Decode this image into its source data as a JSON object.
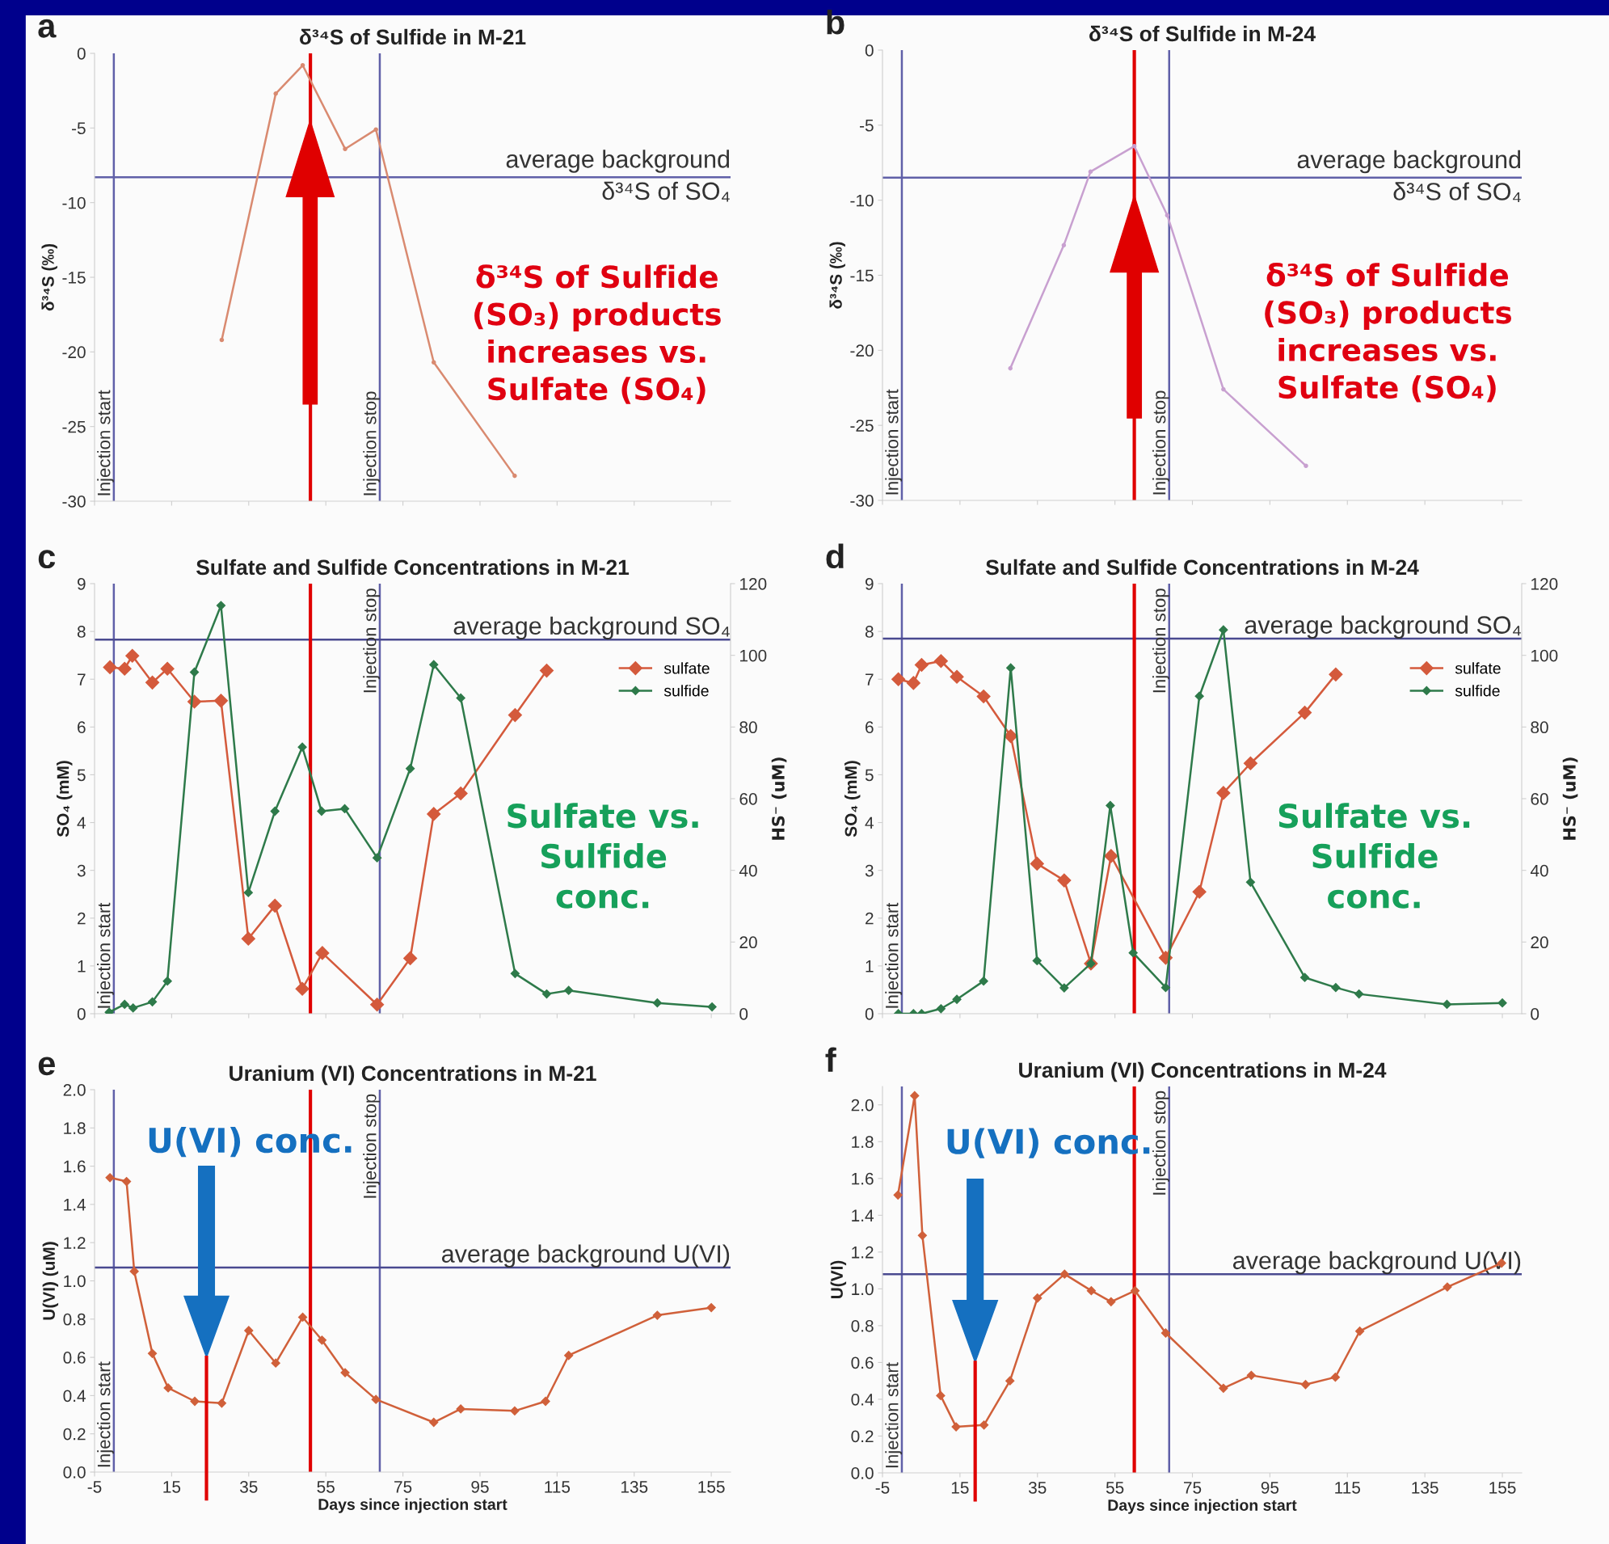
{
  "chart_data": [
    {
      "type": "line",
      "title": "δ³⁴S of Sulfide in M-21",
      "ylabel": "δ³⁴S (‰)",
      "marker": "circle",
      "tick_labels": "y",
      "xlim": [
        -5,
        160
      ],
      "xticks": [
        -5,
        15,
        35,
        55,
        75,
        95,
        115,
        135,
        155
      ],
      "ylim": [
        -30,
        0
      ],
      "yticks": [
        -30,
        -25,
        -20,
        -15,
        -10,
        -5,
        0
      ],
      "series": [
        {
          "color": "#d98a70",
          "x": [
            28,
            42,
            49,
            60,
            68,
            83,
            104
          ],
          "values": [
            -19.2,
            -2.7,
            -0.8,
            -6.4,
            -5.1,
            -20.7,
            -28.3
          ]
        }
      ],
      "ref_lines": [
        {
          "axis": "x",
          "value": 0,
          "label": "Injection start",
          "color": "#6060a8"
        },
        {
          "axis": "x",
          "value": 69,
          "label": "Injection stop",
          "color": "#6060a8"
        },
        {
          "axis": "y",
          "value": -8.3,
          "label": "average background\nδ³⁴S of SO₄",
          "color": "#6060a8"
        },
        {
          "axis": "x",
          "value": 51,
          "color": "#e00000"
        }
      ],
      "annotations": [
        "a",
        "δ³⁴S of Sulfide\n(SO₃) products\nincreases vs.\nSulfate (SO₄)"
      ]
    },
    {
      "type": "line",
      "title": "δ³⁴S of Sulfide in M-24",
      "ylabel": "δ³⁴S (‰)",
      "marker": "circle",
      "tick_labels": "y",
      "xlim": [
        -5,
        160
      ],
      "xticks": [
        -5,
        15,
        35,
        55,
        75,
        95,
        115,
        135,
        155
      ],
      "ylim": [
        -30,
        0
      ],
      "yticks": [
        -30,
        -25,
        -20,
        -15,
        -10,
        -5,
        0
      ],
      "series": [
        {
          "color": "#c8a0d0",
          "x": [
            28,
            41.8,
            48.7,
            60,
            68.5,
            83,
            104.3
          ],
          "values": [
            -21.2,
            -13.0,
            -8.1,
            -6.4,
            -11.0,
            -22.6,
            -27.7
          ]
        }
      ],
      "ref_lines": [
        {
          "axis": "x",
          "value": 0,
          "label": "Injection start",
          "color": "#6060a8"
        },
        {
          "axis": "x",
          "value": 69,
          "label": "Injection stop",
          "color": "#6060a8"
        },
        {
          "axis": "y",
          "value": -8.5,
          "label": "average background\nδ³⁴S of SO₄",
          "color": "#6060a8"
        },
        {
          "axis": "x",
          "value": 60,
          "color": "#e00000"
        }
      ],
      "annotations": [
        "b",
        "δ³⁴S of Sulfide\n(SO₃) products\nincreases vs.\nSulfate (SO₄)"
      ]
    },
    {
      "type": "line",
      "title": "Sulfate and Sulfide Concentrations in M-21",
      "ylabel": "SO₄ (mM)",
      "y2label": "HS⁻ (uM)",
      "marker": "diamond",
      "tick_labels": "y",
      "legend": "top right",
      "xlim": [
        -5,
        160
      ],
      "xticks": [
        -5,
        15,
        35,
        55,
        75,
        95,
        115,
        135,
        155
      ],
      "ylim": [
        0,
        9
      ],
      "yticks": [
        0,
        1,
        2,
        3,
        4,
        5,
        6,
        7,
        8,
        9
      ],
      "y2lim": [
        0,
        120
      ],
      "y2ticks": [
        0,
        20,
        40,
        60,
        80,
        100,
        120
      ],
      "series": [
        {
          "name": "sulfate",
          "color": "#d45a3c",
          "x": [
            -1,
            2.8,
            4.8,
            10,
            13.9,
            20.9,
            27.8,
            34.9,
            41.8,
            48.9,
            54.1,
            68.3,
            76.9,
            83,
            90,
            104.1,
            112.3
          ],
          "values": [
            7.25,
            7.22,
            7.49,
            6.93,
            7.22,
            6.53,
            6.55,
            1.57,
            2.26,
            0.52,
            1.27,
            0.19,
            1.16,
            4.18,
            4.61,
            6.25,
            7.18
          ]
        },
        {
          "name": "sulfide",
          "color": "#2e7a4a",
          "axis": "y2",
          "x": [
            -1.2,
            2.8,
            5,
            10,
            13.9,
            20.9,
            27.8,
            34.9,
            41.8,
            48.9,
            53.9,
            59.9,
            68.3,
            76.9,
            83,
            90,
            104.1,
            112.3,
            118,
            141,
            155.2
          ],
          "values": [
            0.4,
            2.6,
            1.6,
            3.3,
            9.1,
            95.3,
            113.9,
            33.8,
            56.5,
            74.4,
            56.5,
            57.2,
            43.5,
            68.4,
            97.4,
            88.1,
            11.2,
            5.5,
            6.5,
            3.0,
            1.9
          ]
        }
      ],
      "ref_lines": [
        {
          "axis": "x",
          "value": 0,
          "label": "Injection start",
          "color": "#6060a8"
        },
        {
          "axis": "x",
          "value": 69,
          "label": "Injection stop",
          "color": "#6060a8"
        },
        {
          "axis": "y",
          "value": 7.83,
          "label": "average background SO₄",
          "color": "#4a4a90"
        },
        {
          "axis": "x",
          "value": 51,
          "color": "#e00000"
        }
      ],
      "annotations": [
        "c",
        "Sulfate vs.\nSulfide\nconc."
      ]
    },
    {
      "type": "line",
      "title": "Sulfate and Sulfide Concentrations in M-24",
      "ylabel": "SO₄ (mM)",
      "y2label": "HS⁻ (uM)",
      "marker": "diamond",
      "tick_labels": "y",
      "legend": "top right",
      "xlim": [
        -5,
        160
      ],
      "xticks": [
        -5,
        15,
        35,
        55,
        75,
        95,
        115,
        135,
        155
      ],
      "ylim": [
        0,
        9
      ],
      "yticks": [
        0,
        1,
        2,
        3,
        4,
        5,
        6,
        7,
        8,
        9
      ],
      "y2lim": [
        0,
        120
      ],
      "y2ticks": [
        0,
        20,
        40,
        60,
        80,
        100,
        120
      ],
      "series": [
        {
          "name": "sulfate",
          "color": "#d45a3c",
          "x": [
            -0.9,
            3,
            5.1,
            10.1,
            14.2,
            21.1,
            28.1,
            34.9,
            41.9,
            48.8,
            54,
            68.1,
            76.8,
            83,
            90,
            104,
            112
          ],
          "values": [
            7.0,
            6.92,
            7.3,
            7.38,
            7.05,
            6.64,
            5.81,
            3.14,
            2.79,
            1.05,
            3.3,
            1.17,
            2.55,
            4.62,
            5.24,
            6.3,
            7.1
          ]
        },
        {
          "name": "sulfide",
          "color": "#2e7a4a",
          "axis": "y2",
          "x": [
            -0.9,
            3,
            5.1,
            10.1,
            14.2,
            21.1,
            28.1,
            34.9,
            41.9,
            48.8,
            53.8,
            59.7,
            68.1,
            76.8,
            83,
            90,
            104,
            112,
            118,
            140.7,
            155
          ],
          "values": [
            0,
            0,
            0,
            1.4,
            4.0,
            9.1,
            96.5,
            14.8,
            7.2,
            14.0,
            58.1,
            17.0,
            7.3,
            88.6,
            107.1,
            36.7,
            10.1,
            7.3,
            5.5,
            2.6,
            3.0
          ]
        }
      ],
      "ref_lines": [
        {
          "axis": "x",
          "value": 0,
          "label": "Injection start",
          "color": "#6060a8"
        },
        {
          "axis": "x",
          "value": 69,
          "label": "Injection stop",
          "color": "#6060a8"
        },
        {
          "axis": "y",
          "value": 7.85,
          "label": "average background SO₄",
          "color": "#4a4a90"
        },
        {
          "axis": "x",
          "value": 60,
          "color": "#e00000"
        }
      ],
      "annotations": [
        "d",
        "Sulfate vs.\nSulfide\nconc."
      ]
    },
    {
      "type": "line",
      "title": "Uranium (VI) Concentrations in M-21",
      "xlabel": "Days since injection start",
      "ylabel": "U(VI) (uM)",
      "marker": "diamond",
      "xlim": [
        -5,
        160
      ],
      "xticks": [
        -5,
        15,
        35,
        55,
        75,
        95,
        115,
        135,
        155
      ],
      "ylim": [
        0,
        2
      ],
      "yticks": [
        {
          "value": 0,
          "label": "0.0"
        },
        {
          "value": 0.2,
          "label": "0.2"
        },
        {
          "value": 0.4,
          "label": "0.4"
        },
        {
          "value": 0.6,
          "label": "0.6"
        },
        {
          "value": 0.8,
          "label": "0.8"
        },
        {
          "value": 1.0,
          "label": "1.0"
        },
        {
          "value": 1.2,
          "label": "1.2"
        },
        {
          "value": 1.4,
          "label": "1.4"
        },
        {
          "value": 1.6,
          "label": "1.6"
        },
        {
          "value": 1.8,
          "label": "1.8"
        },
        {
          "value": 2.0,
          "label": "2.0"
        }
      ],
      "series": [
        {
          "color": "#d0603a",
          "x": [
            -1,
            3.3,
            5.3,
            10,
            14.1,
            21,
            28,
            35,
            42,
            49,
            54,
            60,
            68,
            83,
            90,
            104,
            112,
            118,
            141,
            155
          ],
          "values": [
            1.54,
            1.52,
            1.05,
            0.62,
            0.44,
            0.37,
            0.36,
            0.74,
            0.57,
            0.81,
            0.69,
            0.52,
            0.38,
            0.26,
            0.33,
            0.32,
            0.37,
            0.61,
            0.82,
            0.86
          ]
        }
      ],
      "ref_lines": [
        {
          "axis": "x",
          "value": 0,
          "label": "Injection start",
          "color": "#6060a8"
        },
        {
          "axis": "x",
          "value": 69,
          "label": "Injection stop",
          "color": "#6060a8"
        },
        {
          "axis": "y",
          "value": 1.07,
          "label": "average background U(VI)",
          "color": "#4a4a90"
        },
        {
          "axis": "x",
          "value": 51,
          "color": "#e00000"
        }
      ],
      "annotations": [
        "e",
        "U(VI) conc."
      ]
    },
    {
      "type": "line",
      "title": "Uranium (VI) Concentrations in M-24",
      "xlabel": "Days since injection start",
      "ylabel": "U(VI)",
      "marker": "diamond",
      "xlim": [
        -5,
        160
      ],
      "xticks": [
        -5,
        15,
        35,
        55,
        75,
        95,
        115,
        135,
        155
      ],
      "ylim": [
        0,
        2.1
      ],
      "yticks": [
        {
          "value": 0,
          "label": "0.0"
        },
        {
          "value": 0.2,
          "label": "0.2"
        },
        {
          "value": 0.4,
          "label": "0.4"
        },
        {
          "value": 0.6,
          "label": "0.6"
        },
        {
          "value": 0.8,
          "label": "0.8"
        },
        {
          "value": 1.0,
          "label": "1.0"
        },
        {
          "value": 1.2,
          "label": "1.2"
        },
        {
          "value": 1.4,
          "label": "1.4"
        },
        {
          "value": 1.6,
          "label": "1.6"
        },
        {
          "value": 1.8,
          "label": "1.8"
        },
        {
          "value": 2.0,
          "label": "2.0"
        }
      ],
      "series": [
        {
          "color": "#d0603a",
          "x": [
            -1,
            3.3,
            5.3,
            10,
            14,
            21.2,
            27.9,
            35,
            42,
            48.9,
            54,
            60.2,
            68.1,
            83,
            90.2,
            104.2,
            111.9,
            118.2,
            140.8,
            154.8
          ],
          "values": [
            1.51,
            2.05,
            1.29,
            0.42,
            0.25,
            0.26,
            0.5,
            0.95,
            1.08,
            0.99,
            0.93,
            0.99,
            0.76,
            0.46,
            0.53,
            0.48,
            0.52,
            0.77,
            1.01,
            1.14
          ]
        }
      ],
      "ref_lines": [
        {
          "axis": "x",
          "value": 0,
          "label": "Injection start",
          "color": "#6060a8"
        },
        {
          "axis": "x",
          "value": 69,
          "label": "Injection stop",
          "color": "#6060a8"
        },
        {
          "axis": "y",
          "value": 1.08,
          "label": "average background U(VI)",
          "color": "#4a4a90"
        },
        {
          "axis": "x",
          "value": 60,
          "color": "#e00000"
        }
      ],
      "annotations": [
        "f",
        "U(VI) conc."
      ]
    }
  ]
}
